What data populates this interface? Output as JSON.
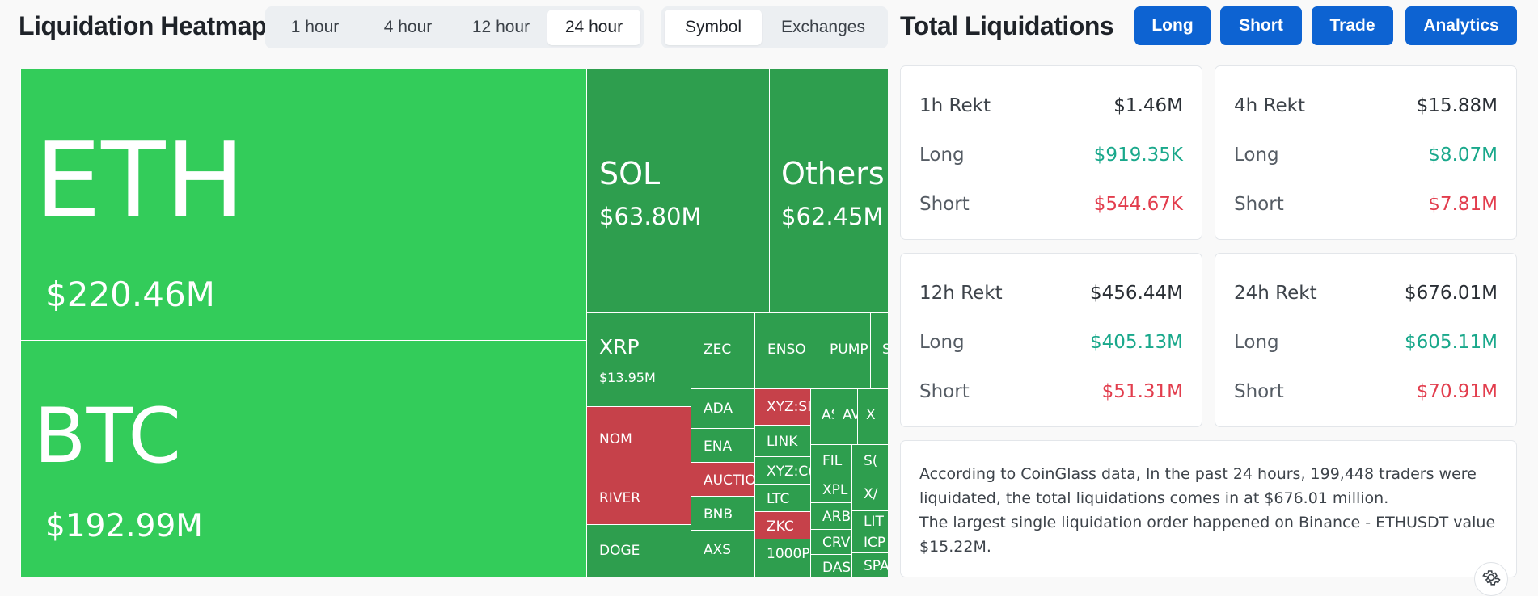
{
  "header": {
    "title": "Liquidation Heatmap",
    "time_options": [
      "1 hour",
      "4 hour",
      "12 hour",
      "24 hour"
    ],
    "time_selected": "24 hour",
    "group_options": [
      "Symbol",
      "Exchanges"
    ],
    "group_selected": "Symbol"
  },
  "treemap": {
    "tiles": [
      {
        "symbol": "ETH",
        "value": "$220.46M"
      },
      {
        "symbol": "BTC",
        "value": "$192.99M"
      },
      {
        "symbol": "SOL",
        "value": "$63.80M"
      },
      {
        "symbol": "Others",
        "value": "$62.45M"
      },
      {
        "symbol": "XRP",
        "value": "$13.95M"
      },
      {
        "symbol": "ZEC"
      },
      {
        "symbol": "ENSO"
      },
      {
        "symbol": "PUMP"
      },
      {
        "symbol": "S"
      },
      {
        "symbol": "NOM"
      },
      {
        "symbol": "ADA"
      },
      {
        "symbol": "XYZ:SI"
      },
      {
        "symbol": "AS"
      },
      {
        "symbol": "AV"
      },
      {
        "symbol": "X"
      },
      {
        "symbol": "LINK"
      },
      {
        "symbol": "ENA"
      },
      {
        "symbol": "FIL"
      },
      {
        "symbol": "S("
      },
      {
        "symbol": "RIVER"
      },
      {
        "symbol": "AUCTIO"
      },
      {
        "symbol": "XYZ:C("
      },
      {
        "symbol": "XPL"
      },
      {
        "symbol": "X/"
      },
      {
        "symbol": "LTC"
      },
      {
        "symbol": "ARB"
      },
      {
        "symbol": "LIT"
      },
      {
        "symbol": "BNB"
      },
      {
        "symbol": "ZKC"
      },
      {
        "symbol": "CRV"
      },
      {
        "symbol": "ICP"
      },
      {
        "symbol": "DOGE"
      },
      {
        "symbol": "AXS"
      },
      {
        "symbol": "1000P"
      },
      {
        "symbol": "DAS"
      },
      {
        "symbol": "SPA"
      }
    ]
  },
  "right": {
    "title": "Total Liquidations",
    "buttons": {
      "long": "Long",
      "short": "Short",
      "trade": "Trade",
      "analytics": "Analytics"
    },
    "cards": [
      {
        "title": "1h Rekt",
        "total": "$1.46M",
        "long_label": "Long",
        "long": "$919.35K",
        "short_label": "Short",
        "short": "$544.67K"
      },
      {
        "title": "4h Rekt",
        "total": "$15.88M",
        "long_label": "Long",
        "long": "$8.07M",
        "short_label": "Short",
        "short": "$7.81M"
      },
      {
        "title": "12h Rekt",
        "total": "$456.44M",
        "long_label": "Long",
        "long": "$405.13M",
        "short_label": "Short",
        "short": "$51.31M"
      },
      {
        "title": "24h Rekt",
        "total": "$676.01M",
        "long_label": "Long",
        "long": "$605.11M",
        "short_label": "Short",
        "short": "$70.91M"
      }
    ],
    "info_line1": "According to CoinGlass data, In the past 24 hours, 199,448 traders were liquidated, the total liquidations comes in at $676.01 million.",
    "info_line2": "The largest single liquidation order happened on Binance - ETHUSDT value $15.22M."
  },
  "colors": {
    "long_green": "#33cc5a",
    "dark_green": "#2e9e4e",
    "short_red": "#c6414a",
    "accent_blue": "#0d63d2",
    "positive_text": "#19a88b",
    "negative_text": "#e23d4d"
  },
  "icons": {
    "settings": "gear-icon"
  }
}
